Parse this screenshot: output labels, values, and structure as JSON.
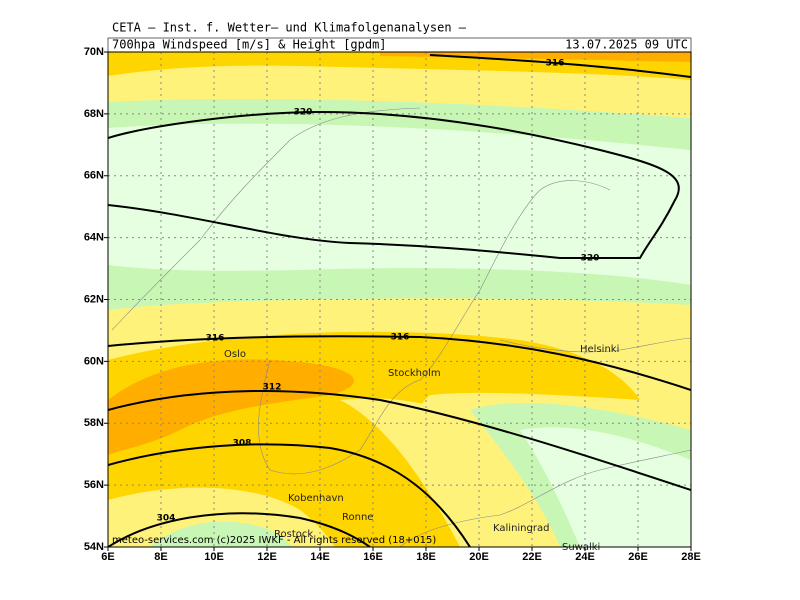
{
  "header": "CETA — Inst. f. Wetter— und Klimafolgenanalysen —",
  "title": "700hpa Windspeed [m/s] & Height [gpdm]",
  "timestamp": "13.07.2025 09 UTC",
  "map": {
    "lonlim": [
      6,
      28
    ],
    "latlim": [
      54,
      70
    ],
    "lonticks": [
      {
        "value": 6,
        "label": "6E"
      },
      {
        "value": 8,
        "label": "8E"
      },
      {
        "value": 10,
        "label": "10E"
      },
      {
        "value": 12,
        "label": "12E"
      },
      {
        "value": 14,
        "label": "14E"
      },
      {
        "value": 16,
        "label": "16E"
      },
      {
        "value": 18,
        "label": "18E"
      },
      {
        "value": 20,
        "label": "20E"
      },
      {
        "value": 22,
        "label": "22E"
      },
      {
        "value": 24,
        "label": "24E"
      },
      {
        "value": 26,
        "label": "26E"
      },
      {
        "value": 28,
        "label": "28E"
      }
    ],
    "latticks": [
      {
        "value": 54,
        "label": "54N"
      },
      {
        "value": 56,
        "label": "56N"
      },
      {
        "value": 58,
        "label": "58N"
      },
      {
        "value": 60,
        "label": "60N"
      },
      {
        "value": 62,
        "label": "62N"
      },
      {
        "value": 64,
        "label": "64N"
      },
      {
        "value": 66,
        "label": "66N"
      },
      {
        "value": 68,
        "label": "68N"
      },
      {
        "value": 70,
        "label": "70N"
      }
    ],
    "grid": true,
    "contours": [
      {
        "level": 316
      },
      {
        "level": 320
      },
      {
        "level": 320
      },
      {
        "level": 316
      },
      {
        "level": 316
      },
      {
        "level": 312
      },
      {
        "level": 308
      },
      {
        "level": 304
      }
    ],
    "cities": [
      "Oslo",
      "Stockholm",
      "Helsinki",
      "Kobenhavn",
      "Ronne",
      "Rostock",
      "Kaliningrad",
      "Suwalki"
    ]
  },
  "footer": "meteo-services.com (c)2025 IWKF - All rights reserved (18+015)"
}
